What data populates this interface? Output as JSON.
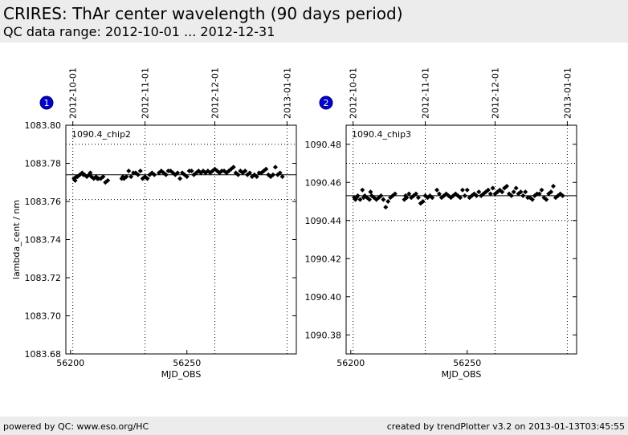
{
  "header": {
    "title": "CRIRES: ThAr center wavelength (90 days period)",
    "subtitle": "QC data range: 2012-10-01 ... 2012-12-31"
  },
  "footer": {
    "left": "powered by QC: www.eso.org/HC",
    "right": "created by trendPlotter v3.2 on 2013-01-13T03:45:55"
  },
  "colors": {
    "panel_bg": "#ececec",
    "marker_bg": "#0000cc"
  },
  "chart_data": [
    {
      "type": "scatter",
      "panel_number": "1",
      "label": "1090.4_chip2",
      "xlabel": "MJD_OBS",
      "ylabel": "lambda_cent / nm",
      "xlim": [
        56198,
        56297
      ],
      "ylim": [
        1083.68,
        1083.8
      ],
      "xticks": [
        56200,
        56250
      ],
      "xticklabels": [
        "56200",
        "56250"
      ],
      "yticks": [
        1083.68,
        1083.7,
        1083.72,
        1083.74,
        1083.76,
        1083.78,
        1083.8
      ],
      "yticklabels": [
        "1083.68",
        "1083.70",
        "1083.72",
        "1083.74",
        "1083.76",
        "1083.78",
        "1083.80"
      ],
      "date_lines": [
        {
          "x": 56201,
          "label": "2012-10-01"
        },
        {
          "x": 56232,
          "label": "2012-11-01"
        },
        {
          "x": 56262,
          "label": "2012-12-01"
        },
        {
          "x": 56293,
          "label": "2013-01-01"
        }
      ],
      "mean": 1083.774,
      "band": [
        1083.761,
        1083.79
      ],
      "x": [
        56201.5,
        56202,
        56202.5,
        56203,
        56204,
        56205,
        56205.5,
        56206,
        56207,
        56208,
        56208.5,
        56209,
        56210,
        56211,
        56211.5,
        56212,
        56213,
        56214,
        56215,
        56216,
        56222,
        56222.5,
        56223,
        56224,
        56225,
        56226,
        56227,
        56228,
        56229,
        56230,
        56231,
        56232,
        56233,
        56234,
        56235,
        56236,
        56238,
        56239,
        56240,
        56241,
        56242,
        56243,
        56244,
        56245,
        56246,
        56247,
        56248,
        56249,
        56250,
        56251,
        56252,
        56253,
        56254,
        56255,
        56256,
        56257,
        56258,
        56259,
        56260,
        56261,
        56262,
        56263,
        56264,
        56265,
        56266,
        56267,
        56268,
        56269,
        56270,
        56271,
        56272,
        56273,
        56274,
        56275,
        56276,
        56277,
        56278,
        56279,
        56280,
        56281,
        56282,
        56283,
        56284,
        56285,
        56286,
        56287,
        56288,
        56289,
        56290,
        56291
      ],
      "y": [
        1083.772,
        1083.771,
        1083.773,
        1083.773,
        1083.774,
        1083.775,
        1083.774,
        1083.774,
        1083.773,
        1083.774,
        1083.775,
        1083.773,
        1083.772,
        1083.773,
        1083.772,
        1083.772,
        1083.772,
        1083.773,
        1083.77,
        1083.771,
        1083.772,
        1083.773,
        1083.772,
        1083.773,
        1083.776,
        1083.773,
        1083.775,
        1083.775,
        1083.774,
        1083.776,
        1083.772,
        1083.773,
        1083.772,
        1083.774,
        1083.775,
        1083.774,
        1083.775,
        1083.776,
        1083.775,
        1083.774,
        1083.776,
        1083.776,
        1083.775,
        1083.774,
        1083.775,
        1083.772,
        1083.775,
        1083.774,
        1083.773,
        1083.776,
        1083.776,
        1083.774,
        1083.775,
        1083.776,
        1083.775,
        1083.776,
        1083.775,
        1083.776,
        1083.775,
        1083.776,
        1083.777,
        1083.776,
        1083.775,
        1083.776,
        1083.776,
        1083.775,
        1083.776,
        1083.777,
        1083.778,
        1083.775,
        1083.774,
        1083.776,
        1083.775,
        1083.776,
        1083.774,
        1083.775,
        1083.773,
        1083.774,
        1083.773,
        1083.775,
        1083.775,
        1083.776,
        1083.777,
        1083.774,
        1083.773,
        1083.774,
        1083.778,
        1083.774,
        1083.775,
        1083.773
      ]
    },
    {
      "type": "scatter",
      "panel_number": "2",
      "label": "1090.4_chip3",
      "xlabel": "MJD_OBS",
      "ylabel": "",
      "xlim": [
        56198,
        56297
      ],
      "ylim": [
        1090.37,
        1090.49
      ],
      "xticks": [
        56200,
        56250
      ],
      "xticklabels": [
        "56200",
        "56250"
      ],
      "yticks": [
        1090.38,
        1090.4,
        1090.42,
        1090.44,
        1090.46,
        1090.48
      ],
      "yticklabels": [
        "1090.38",
        "1090.40",
        "1090.42",
        "1090.44",
        "1090.46",
        "1090.48"
      ],
      "date_lines": [
        {
          "x": 56201,
          "label": "2012-10-01"
        },
        {
          "x": 56232,
          "label": "2012-11-01"
        },
        {
          "x": 56262,
          "label": "2012-12-01"
        },
        {
          "x": 56293,
          "label": "2013-01-01"
        }
      ],
      "mean": 1090.453,
      "band": [
        1090.44,
        1090.47
      ],
      "x": [
        56201.5,
        56202,
        56202.5,
        56203,
        56204,
        56205,
        56205.5,
        56206,
        56207,
        56208,
        56208.5,
        56209,
        56210,
        56211,
        56212,
        56213,
        56214,
        56215,
        56216,
        56217,
        56218,
        56219,
        56223,
        56223.5,
        56224,
        56225,
        56226,
        56227,
        56228,
        56229,
        56230,
        56231,
        56232,
        56233,
        56234,
        56235,
        56237,
        56238,
        56239,
        56240,
        56241,
        56242,
        56243,
        56244,
        56245,
        56246,
        56247,
        56248,
        56249,
        56250,
        56251,
        56252,
        56253,
        56254,
        56255,
        56256,
        56257,
        56258,
        56259,
        56260,
        56261,
        56262,
        56263,
        56264,
        56265,
        56266,
        56267,
        56268,
        56269,
        56270,
        56271,
        56272,
        56273,
        56274,
        56275,
        56276,
        56277,
        56278,
        56279,
        56280,
        56281,
        56282,
        56283,
        56284,
        56285,
        56286,
        56287,
        56288,
        56289,
        56290,
        56291
      ],
      "y": [
        1090.452,
        1090.451,
        1090.452,
        1090.453,
        1090.451,
        1090.456,
        1090.452,
        1090.453,
        1090.452,
        1090.451,
        1090.455,
        1090.453,
        1090.452,
        1090.451,
        1090.452,
        1090.453,
        1090.451,
        1090.447,
        1090.45,
        1090.452,
        1090.453,
        1090.454,
        1090.451,
        1090.453,
        1090.452,
        1090.454,
        1090.452,
        1090.453,
        1090.454,
        1090.452,
        1090.449,
        1090.45,
        1090.453,
        1090.452,
        1090.453,
        1090.452,
        1090.456,
        1090.454,
        1090.452,
        1090.453,
        1090.454,
        1090.453,
        1090.452,
        1090.453,
        1090.454,
        1090.453,
        1090.452,
        1090.456,
        1090.453,
        1090.456,
        1090.452,
        1090.453,
        1090.454,
        1090.453,
        1090.455,
        1090.453,
        1090.454,
        1090.455,
        1090.456,
        1090.454,
        1090.457,
        1090.454,
        1090.455,
        1090.456,
        1090.455,
        1090.457,
        1090.458,
        1090.454,
        1090.453,
        1090.455,
        1090.457,
        1090.454,
        1090.455,
        1090.453,
        1090.455,
        1090.452,
        1090.452,
        1090.451,
        1090.453,
        1090.454,
        1090.454,
        1090.456,
        1090.452,
        1090.451,
        1090.454,
        1090.455,
        1090.458,
        1090.452,
        1090.453,
        1090.454,
        1090.453
      ]
    }
  ]
}
